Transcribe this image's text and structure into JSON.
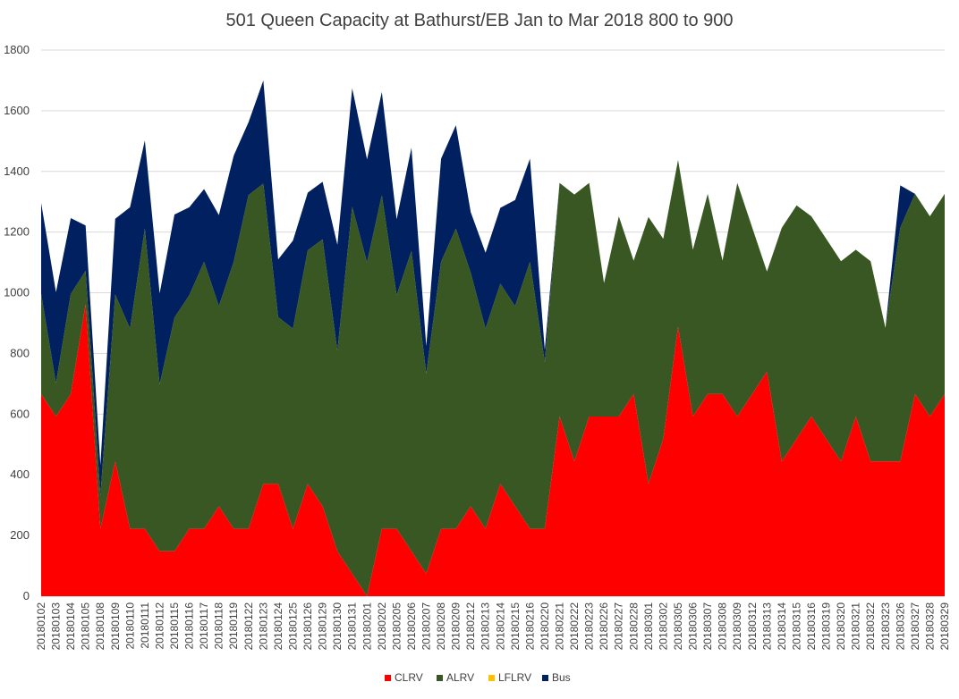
{
  "chart_data": {
    "type": "area",
    "stacked": true,
    "title": "501 Queen Capacity at Bathurst/EB Jan to Mar 2018 800 to 900",
    "xlabel": "",
    "ylabel": "",
    "ylim": [
      0,
      1800
    ],
    "yticks": [
      0,
      200,
      400,
      600,
      800,
      1000,
      1200,
      1400,
      1600,
      1800
    ],
    "grid": true,
    "legend_position": "bottom",
    "categories": [
      "20180102",
      "20180103",
      "20180104",
      "20180105",
      "20180108",
      "20180109",
      "20180110",
      "20180111",
      "20180112",
      "20180115",
      "20180116",
      "20180117",
      "20180118",
      "20180119",
      "20180122",
      "20180123",
      "20180124",
      "20180125",
      "20180126",
      "20180129",
      "20180130",
      "20180131",
      "20180201",
      "20180202",
      "20180205",
      "20180206",
      "20180207",
      "20180208",
      "20180209",
      "20180212",
      "20180213",
      "20180214",
      "20180215",
      "20180216",
      "20180220",
      "20180221",
      "20180222",
      "20180223",
      "20180226",
      "20180227",
      "20180228",
      "20180301",
      "20180302",
      "20180305",
      "20180306",
      "20180307",
      "20180308",
      "20180309",
      "20180312",
      "20180313",
      "20180314",
      "20180315",
      "20180316",
      "20180319",
      "20180320",
      "20180321",
      "20180322",
      "20180323",
      "20180326",
      "20180327",
      "20180328",
      "20180329"
    ],
    "series": [
      {
        "name": "CLRV",
        "color": "#ff0000",
        "values": [
          666,
          592,
          666,
          962,
          222,
          444,
          222,
          222,
          148,
          148,
          222,
          222,
          296,
          222,
          222,
          370,
          370,
          222,
          370,
          296,
          148,
          74,
          0,
          222,
          222,
          148,
          74,
          222,
          222,
          296,
          222,
          370,
          296,
          222,
          222,
          592,
          444,
          592,
          592,
          592,
          666,
          370,
          518,
          888,
          592,
          666,
          666,
          592,
          666,
          740,
          444,
          518,
          592,
          518,
          444,
          592,
          444,
          444,
          444,
          666,
          592,
          666
        ]
      },
      {
        "name": "ALRV",
        "color": "#385723",
        "values": [
          330,
          110,
          330,
          110,
          110,
          550,
          660,
          990,
          550,
          770,
          770,
          880,
          660,
          880,
          1100,
          990,
          550,
          660,
          770,
          880,
          660,
          1210,
          1100,
          1100,
          770,
          990,
          660,
          880,
          990,
          770,
          660,
          660,
          660,
          880,
          550,
          770,
          880,
          770,
          440,
          660,
          440,
          880,
          660,
          550,
          550,
          660,
          440,
          770,
          550,
          330,
          770,
          770,
          660,
          660,
          660,
          550,
          660,
          440,
          770,
          660,
          660,
          660
        ]
      },
      {
        "name": "LFLRV",
        "color": "#ffc000",
        "values": [
          0,
          0,
          0,
          0,
          0,
          0,
          0,
          0,
          0,
          0,
          0,
          0,
          0,
          0,
          0,
          0,
          0,
          0,
          0,
          0,
          0,
          0,
          0,
          0,
          0,
          0,
          0,
          0,
          0,
          0,
          0,
          0,
          0,
          0,
          0,
          0,
          0,
          0,
          0,
          0,
          0,
          0,
          0,
          0,
          0,
          0,
          0,
          0,
          0,
          0,
          0,
          0,
          0,
          0,
          0,
          0,
          0,
          0,
          0,
          0,
          0,
          0
        ]
      },
      {
        "name": "Bus",
        "color": "#002060",
        "values": [
          300,
          300,
          250,
          150,
          100,
          250,
          400,
          290,
          300,
          340,
          290,
          240,
          300,
          350,
          240,
          340,
          190,
          290,
          190,
          190,
          350,
          390,
          340,
          340,
          250,
          340,
          90,
          340,
          340,
          200,
          250,
          250,
          350,
          340,
          40,
          0,
          0,
          0,
          0,
          0,
          0,
          0,
          0,
          0,
          0,
          0,
          0,
          0,
          0,
          0,
          0,
          0,
          0,
          0,
          0,
          0,
          0,
          0,
          140,
          0,
          0,
          0
        ]
      }
    ]
  }
}
